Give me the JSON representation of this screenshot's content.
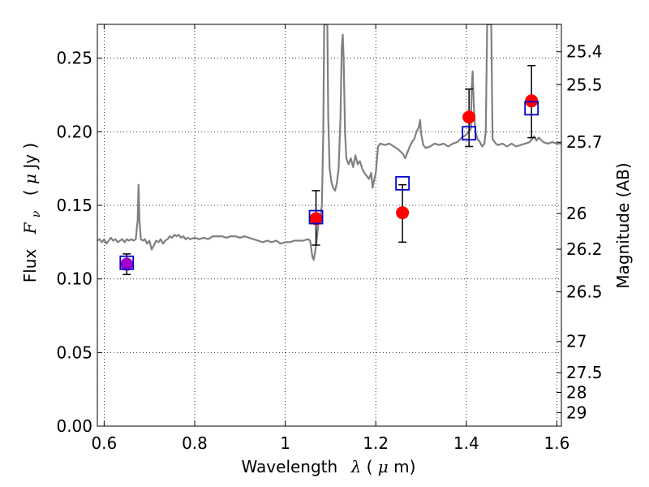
{
  "chart_data": {
    "type": "scatter",
    "xlabel_prefix": "Wavelength",
    "xlabel_symbol": "λ",
    "xlabel_unit_open": " (",
    "xlabel_unit_mu": "μ",
    "xlabel_unit_close": "m)",
    "ylabel_prefix": "Flux",
    "ylabel_symbol": "F",
    "ylabel_sub": "ν",
    "ylabel_unit_open": "( ",
    "ylabel_unit_mu": "μ",
    "ylabel_unit_close": "Jy )",
    "y2label": "Magnitude (AB)",
    "xlim": [
      0.585,
      1.61
    ],
    "ylim": [
      0.0,
      0.273
    ],
    "grid": true,
    "xticks": [
      0.6,
      0.8,
      1.0,
      1.2,
      1.4,
      1.6
    ],
    "xtick_labels": [
      "0.6",
      "0.8",
      "1",
      "1.2",
      "1.4",
      "1.6"
    ],
    "yticks": [
      0.0,
      0.05,
      0.1,
      0.15,
      0.2,
      0.25
    ],
    "ytick_labels": [
      "0.00",
      "0.05",
      "0.10",
      "0.15",
      "0.20",
      "0.25"
    ],
    "y2ticks": [
      {
        "label": "25.4",
        "flux": 0.2544
      },
      {
        "label": "25.5",
        "flux": 0.232
      },
      {
        "label": "25.7",
        "flux": 0.1929
      },
      {
        "label": "26",
        "flux": 0.1445
      },
      {
        "label": "26.2",
        "flux": 0.1202
      },
      {
        "label": "26.5",
        "flux": 0.0912
      },
      {
        "label": "27",
        "flux": 0.0575
      },
      {
        "label": "27.5",
        "flux": 0.0363
      },
      {
        "label": "28",
        "flux": 0.0229
      },
      {
        "label": "29",
        "flux": 0.0091
      }
    ],
    "model_color": "#808080",
    "observed_color": "#ff0000",
    "model_box_color": "#0000cc",
    "first_point_color": "#a000c8",
    "spectrum": [
      [
        0.585,
        0.126
      ],
      [
        0.59,
        0.127
      ],
      [
        0.595,
        0.125
      ],
      [
        0.6,
        0.127
      ],
      [
        0.605,
        0.124
      ],
      [
        0.61,
        0.126
      ],
      [
        0.615,
        0.128
      ],
      [
        0.62,
        0.126
      ],
      [
        0.625,
        0.127
      ],
      [
        0.63,
        0.125
      ],
      [
        0.635,
        0.126
      ],
      [
        0.64,
        0.127
      ],
      [
        0.645,
        0.125
      ],
      [
        0.65,
        0.127
      ],
      [
        0.655,
        0.126
      ],
      [
        0.66,
        0.127
      ],
      [
        0.665,
        0.126
      ],
      [
        0.67,
        0.127
      ],
      [
        0.674,
        0.14
      ],
      [
        0.676,
        0.164
      ],
      [
        0.678,
        0.14
      ],
      [
        0.681,
        0.127
      ],
      [
        0.686,
        0.126
      ],
      [
        0.69,
        0.127
      ],
      [
        0.695,
        0.124
      ],
      [
        0.7,
        0.126
      ],
      [
        0.705,
        0.12
      ],
      [
        0.71,
        0.123
      ],
      [
        0.715,
        0.126
      ],
      [
        0.72,
        0.125
      ],
      [
        0.725,
        0.127
      ],
      [
        0.73,
        0.124
      ],
      [
        0.735,
        0.126
      ],
      [
        0.74,
        0.127
      ],
      [
        0.745,
        0.129
      ],
      [
        0.75,
        0.128
      ],
      [
        0.755,
        0.13
      ],
      [
        0.76,
        0.129
      ],
      [
        0.765,
        0.13
      ],
      [
        0.77,
        0.128
      ],
      [
        0.775,
        0.129
      ],
      [
        0.78,
        0.127
      ],
      [
        0.785,
        0.128
      ],
      [
        0.79,
        0.127
      ],
      [
        0.8,
        0.128
      ],
      [
        0.81,
        0.127
      ],
      [
        0.82,
        0.128
      ],
      [
        0.83,
        0.127
      ],
      [
        0.84,
        0.129
      ],
      [
        0.85,
        0.129
      ],
      [
        0.86,
        0.129
      ],
      [
        0.87,
        0.128
      ],
      [
        0.88,
        0.129
      ],
      [
        0.89,
        0.129
      ],
      [
        0.9,
        0.128
      ],
      [
        0.91,
        0.129
      ],
      [
        0.92,
        0.128
      ],
      [
        0.93,
        0.127
      ],
      [
        0.94,
        0.126
      ],
      [
        0.95,
        0.125
      ],
      [
        0.96,
        0.126
      ],
      [
        0.97,
        0.125
      ],
      [
        0.98,
        0.126
      ],
      [
        0.99,
        0.124
      ],
      [
        1.0,
        0.125
      ],
      [
        1.01,
        0.125
      ],
      [
        1.02,
        0.126
      ],
      [
        1.03,
        0.126
      ],
      [
        1.04,
        0.126
      ],
      [
        1.05,
        0.127
      ],
      [
        1.055,
        0.126
      ],
      [
        1.06,
        0.115
      ],
      [
        1.063,
        0.113
      ],
      [
        1.066,
        0.118
      ],
      [
        1.07,
        0.128
      ],
      [
        1.075,
        0.142
      ],
      [
        1.078,
        0.143
      ],
      [
        1.081,
        0.15
      ],
      [
        1.084,
        0.2
      ],
      [
        1.086,
        0.273
      ],
      [
        1.09,
        0.273
      ],
      [
        1.093,
        0.273
      ],
      [
        1.095,
        0.21
      ],
      [
        1.098,
        0.175
      ],
      [
        1.102,
        0.166
      ],
      [
        1.106,
        0.162
      ],
      [
        1.11,
        0.16
      ],
      [
        1.114,
        0.165
      ],
      [
        1.118,
        0.175
      ],
      [
        1.122,
        0.21
      ],
      [
        1.125,
        0.258
      ],
      [
        1.127,
        0.266
      ],
      [
        1.129,
        0.25
      ],
      [
        1.132,
        0.2
      ],
      [
        1.135,
        0.182
      ],
      [
        1.14,
        0.178
      ],
      [
        1.145,
        0.182
      ],
      [
        1.15,
        0.176
      ],
      [
        1.155,
        0.184
      ],
      [
        1.16,
        0.178
      ],
      [
        1.165,
        0.18
      ],
      [
        1.17,
        0.175
      ],
      [
        1.175,
        0.172
      ],
      [
        1.18,
        0.17
      ],
      [
        1.185,
        0.168
      ],
      [
        1.19,
        0.172
      ],
      [
        1.193,
        0.162
      ],
      [
        1.197,
        0.168
      ],
      [
        1.2,
        0.172
      ],
      [
        1.205,
        0.19
      ],
      [
        1.21,
        0.192
      ],
      [
        1.22,
        0.191
      ],
      [
        1.23,
        0.192
      ],
      [
        1.24,
        0.19
      ],
      [
        1.25,
        0.188
      ],
      [
        1.26,
        0.185
      ],
      [
        1.265,
        0.182
      ],
      [
        1.27,
        0.186
      ],
      [
        1.275,
        0.19
      ],
      [
        1.28,
        0.193
      ],
      [
        1.285,
        0.195
      ],
      [
        1.29,
        0.2
      ],
      [
        1.295,
        0.203
      ],
      [
        1.298,
        0.208
      ],
      [
        1.3,
        0.199
      ],
      [
        1.305,
        0.191
      ],
      [
        1.31,
        0.189
      ],
      [
        1.32,
        0.19
      ],
      [
        1.33,
        0.192
      ],
      [
        1.34,
        0.191
      ],
      [
        1.35,
        0.192
      ],
      [
        1.36,
        0.19
      ],
      [
        1.37,
        0.192
      ],
      [
        1.38,
        0.193
      ],
      [
        1.39,
        0.196
      ],
      [
        1.4,
        0.198
      ],
      [
        1.405,
        0.2
      ],
      [
        1.41,
        0.202
      ],
      [
        1.412,
        0.23
      ],
      [
        1.414,
        0.241
      ],
      [
        1.417,
        0.215
      ],
      [
        1.42,
        0.2
      ],
      [
        1.425,
        0.195
      ],
      [
        1.43,
        0.193
      ],
      [
        1.435,
        0.19
      ],
      [
        1.44,
        0.192
      ],
      [
        1.443,
        0.2
      ],
      [
        1.446,
        0.273
      ],
      [
        1.455,
        0.273
      ],
      [
        1.458,
        0.195
      ],
      [
        1.465,
        0.192
      ],
      [
        1.47,
        0.191
      ],
      [
        1.48,
        0.192
      ],
      [
        1.49,
        0.19
      ],
      [
        1.5,
        0.192
      ],
      [
        1.51,
        0.19
      ],
      [
        1.52,
        0.191
      ],
      [
        1.53,
        0.192
      ],
      [
        1.54,
        0.193
      ],
      [
        1.545,
        0.195
      ],
      [
        1.55,
        0.197
      ],
      [
        1.555,
        0.194
      ],
      [
        1.56,
        0.196
      ],
      [
        1.57,
        0.193
      ],
      [
        1.58,
        0.192
      ],
      [
        1.59,
        0.193
      ],
      [
        1.6,
        0.192
      ],
      [
        1.61,
        0.192
      ]
    ],
    "observed": [
      {
        "x": 0.65,
        "y": 0.11,
        "yerr_low": 0.103,
        "yerr_high": 0.117
      },
      {
        "x": 1.068,
        "y": 0.141,
        "yerr_low": 0.123,
        "yerr_high": 0.16
      },
      {
        "x": 1.259,
        "y": 0.145,
        "yerr_low": 0.125,
        "yerr_high": 0.164
      },
      {
        "x": 1.406,
        "y": 0.21,
        "yerr_low": 0.19,
        "yerr_high": 0.229
      },
      {
        "x": 1.544,
        "y": 0.221,
        "yerr_low": 0.196,
        "yerr_high": 0.245
      }
    ],
    "model_points": [
      {
        "x": 0.65,
        "y": 0.111
      },
      {
        "x": 1.068,
        "y": 0.142
      },
      {
        "x": 1.259,
        "y": 0.165
      },
      {
        "x": 1.406,
        "y": 0.199
      },
      {
        "x": 1.544,
        "y": 0.216
      }
    ]
  }
}
